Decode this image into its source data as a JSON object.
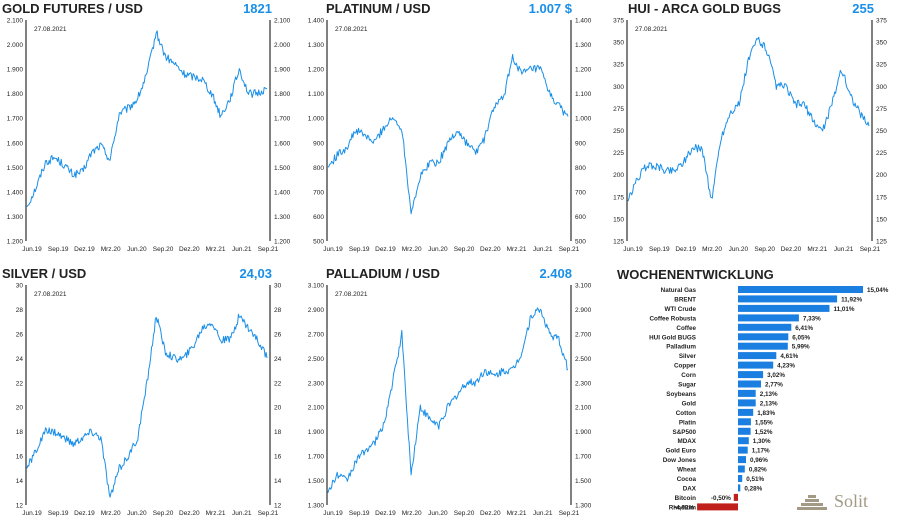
{
  "colors": {
    "line": "#1a8fe8",
    "value": "#1a8fe8",
    "bar_pos": "#1a7fe0",
    "bar_neg": "#c0201c",
    "text": "#222222",
    "logo": "#a39a86"
  },
  "logo": {
    "text": "Solit"
  },
  "chart_data": [
    {
      "type": "line",
      "title": "GOLD FUTURES / USD",
      "value": "1821",
      "date_label": "27.08.2021",
      "x_ticks": [
        "Jun.19",
        "Sep.19",
        "Dez.19",
        "Mrz.20",
        "Jun.20",
        "Sep.20",
        "Dez.20",
        "Mrz.21",
        "Jun.21",
        "Sep.21"
      ],
      "y_ticks": [
        "1.200",
        "1.300",
        "1.400",
        "1.500",
        "1.600",
        "1.700",
        "1.800",
        "1.900",
        "2.000",
        "2.100"
      ],
      "ylim": [
        1200,
        2100
      ],
      "x": [
        "2019-06",
        "2019-07",
        "2019-08",
        "2019-09",
        "2019-10",
        "2019-11",
        "2019-12",
        "2020-01",
        "2020-02",
        "2020-03",
        "2020-04",
        "2020-05",
        "2020-06",
        "2020-07",
        "2020-08",
        "2020-09",
        "2020-10",
        "2020-11",
        "2020-12",
        "2021-01",
        "2021-02",
        "2021-03",
        "2021-04",
        "2021-05",
        "2021-06",
        "2021-07",
        "2021-08"
      ],
      "values": [
        1340,
        1420,
        1520,
        1540,
        1510,
        1470,
        1480,
        1560,
        1590,
        1530,
        1720,
        1740,
        1780,
        1880,
        2050,
        1950,
        1920,
        1880,
        1870,
        1860,
        1800,
        1710,
        1780,
        1900,
        1800,
        1800,
        1821
      ]
    },
    {
      "type": "line",
      "title": "PLATINUM / USD",
      "value": "1.007 $",
      "date_label": "27.08.2021",
      "x_ticks": [
        "Jun.19",
        "Sep.19",
        "Dez.19",
        "Mrz.20",
        "Jun.20",
        "Sep.20",
        "Dez.20",
        "Mrz.21",
        "Jun.21",
        "Sep.21"
      ],
      "y_ticks": [
        "500",
        "600",
        "700",
        "800",
        "900",
        "1.000",
        "1.100",
        "1.200",
        "1.300",
        "1.400"
      ],
      "ylim": [
        500,
        1400
      ],
      "x": [
        "2019-06",
        "2019-07",
        "2019-08",
        "2019-09",
        "2019-10",
        "2019-11",
        "2019-12",
        "2020-01",
        "2020-02",
        "2020-03",
        "2020-04",
        "2020-05",
        "2020-06",
        "2020-07",
        "2020-08",
        "2020-09",
        "2020-10",
        "2020-11",
        "2020-12",
        "2021-01",
        "2021-02",
        "2021-03",
        "2021-04",
        "2021-05",
        "2021-06",
        "2021-07",
        "2021-08"
      ],
      "values": [
        800,
        850,
        880,
        950,
        930,
        900,
        960,
        1000,
        960,
        620,
        760,
        820,
        820,
        900,
        950,
        900,
        860,
        920,
        1050,
        1080,
        1250,
        1180,
        1200,
        1200,
        1100,
        1050,
        1007
      ]
    },
    {
      "type": "line",
      "title": "HUI - ARCA GOLD BUGS",
      "value": "255",
      "date_label": "27.08.2021",
      "x_ticks": [
        "Jun.19",
        "Sep.19",
        "Dez.19",
        "Mrz.20",
        "Jun.20",
        "Sep.20",
        "Dez.20",
        "Mrz.21",
        "Jun.21",
        "Sep.21"
      ],
      "y_ticks": [
        "125",
        "150",
        "175",
        "200",
        "225",
        "250",
        "275",
        "300",
        "325",
        "350",
        "375"
      ],
      "ylim": [
        125,
        375
      ],
      "x": [
        "2019-06",
        "2019-07",
        "2019-08",
        "2019-09",
        "2019-10",
        "2019-11",
        "2019-12",
        "2020-01",
        "2020-02",
        "2020-03",
        "2020-04",
        "2020-05",
        "2020-06",
        "2020-07",
        "2020-08",
        "2020-09",
        "2020-10",
        "2020-11",
        "2020-12",
        "2021-01",
        "2021-02",
        "2021-03",
        "2021-04",
        "2021-05",
        "2021-06",
        "2021-07",
        "2021-08"
      ],
      "values": [
        170,
        195,
        210,
        210,
        205,
        205,
        215,
        230,
        230,
        170,
        240,
        270,
        280,
        330,
        355,
        340,
        300,
        300,
        280,
        280,
        260,
        250,
        280,
        320,
        290,
        270,
        255
      ]
    },
    {
      "type": "line",
      "title": "SILVER / USD",
      "value": "24,03",
      "date_label": "27.08.2021",
      "x_ticks": [
        "Jun.19",
        "Sep.19",
        "Dez.19",
        "Mrz.20",
        "Jun.20",
        "Sep.20",
        "Dez.20",
        "Mrz.21",
        "Jun.21",
        "Sep.21"
      ],
      "y_ticks": [
        "12",
        "14",
        "16",
        "18",
        "20",
        "22",
        "24",
        "26",
        "28",
        "30"
      ],
      "ylim": [
        12,
        30
      ],
      "x": [
        "2019-06",
        "2019-07",
        "2019-08",
        "2019-09",
        "2019-10",
        "2019-11",
        "2019-12",
        "2020-01",
        "2020-02",
        "2020-03",
        "2020-04",
        "2020-05",
        "2020-06",
        "2020-07",
        "2020-08",
        "2020-09",
        "2020-10",
        "2020-11",
        "2020-12",
        "2021-01",
        "2021-02",
        "2021-03",
        "2021-04",
        "2021-05",
        "2021-06",
        "2021-07",
        "2021-08"
      ],
      "values": [
        15,
        16.5,
        18,
        18,
        17.5,
        17,
        17.5,
        18,
        17.5,
        12.5,
        15,
        16,
        17.5,
        22,
        27.5,
        24.5,
        24,
        24,
        25,
        26.5,
        27,
        25.5,
        25.5,
        27.5,
        26.5,
        25.5,
        24.03
      ]
    },
    {
      "type": "line",
      "title": "PALLADIUM / USD",
      "value": "2.408",
      "date_label": "27.08.2021",
      "x_ticks": [
        "Jun.19",
        "Sep.19",
        "Dez.19",
        "Mrz.20",
        "Jun.20",
        "Sep.20",
        "Dez.20",
        "Mrz.21",
        "Jun.21",
        "Sep.21"
      ],
      "y_ticks": [
        "1.300",
        "1.500",
        "1.700",
        "1.900",
        "2.100",
        "2.300",
        "2.500",
        "2.700",
        "2.900",
        "3.100"
      ],
      "ylim": [
        1300,
        3100
      ],
      "x": [
        "2019-06",
        "2019-07",
        "2019-08",
        "2019-09",
        "2019-10",
        "2019-11",
        "2019-12",
        "2020-01",
        "2020-02",
        "2020-03",
        "2020-04",
        "2020-05",
        "2020-06",
        "2020-07",
        "2020-08",
        "2020-09",
        "2020-10",
        "2020-11",
        "2020-12",
        "2021-01",
        "2021-02",
        "2021-03",
        "2021-04",
        "2021-05",
        "2021-06",
        "2021-07",
        "2021-08"
      ],
      "values": [
        1400,
        1550,
        1500,
        1650,
        1750,
        1800,
        1950,
        2300,
        2700,
        1550,
        2100,
        2000,
        1950,
        2100,
        2200,
        2300,
        2300,
        2400,
        2350,
        2400,
        2400,
        2550,
        2850,
        2900,
        2700,
        2650,
        2408
      ]
    },
    {
      "type": "bar",
      "title": "WOCHENENTWICKLUNG",
      "categories": [
        "Natural Gas",
        "BRENT",
        "WTI Crude",
        "Coffee Robusta",
        "Coffee",
        "HUI Gold BUGS",
        "Palladium",
        "Silver",
        "Copper",
        "Corn",
        "Sugar",
        "Soybeans",
        "Gold",
        "Cotton",
        "Platin",
        "S&P500",
        "MDAX",
        "Gold Euro",
        "Dow Jones",
        "Wheat",
        "Cocoa",
        "DAX",
        "Bitcoin",
        "Rhodium"
      ],
      "values": [
        15.04,
        11.92,
        11.01,
        7.33,
        6.41,
        6.05,
        5.99,
        4.61,
        4.23,
        3.02,
        2.77,
        2.13,
        2.13,
        1.83,
        1.55,
        1.52,
        1.3,
        1.17,
        0.96,
        0.82,
        0.51,
        0.28,
        -0.5,
        -4.92
      ],
      "value_labels": [
        "15,04%",
        "11,92%",
        "11,01%",
        "7,33%",
        "6,41%",
        "6,05%",
        "5,99%",
        "4,61%",
        "4,23%",
        "3,02%",
        "2,77%",
        "2,13%",
        "2,13%",
        "1,83%",
        "1,55%",
        "1,52%",
        "1,30%",
        "1,17%",
        "0,96%",
        "0,82%",
        "0,51%",
        "0,28%",
        "-0,50%",
        "-4,92%"
      ]
    }
  ]
}
